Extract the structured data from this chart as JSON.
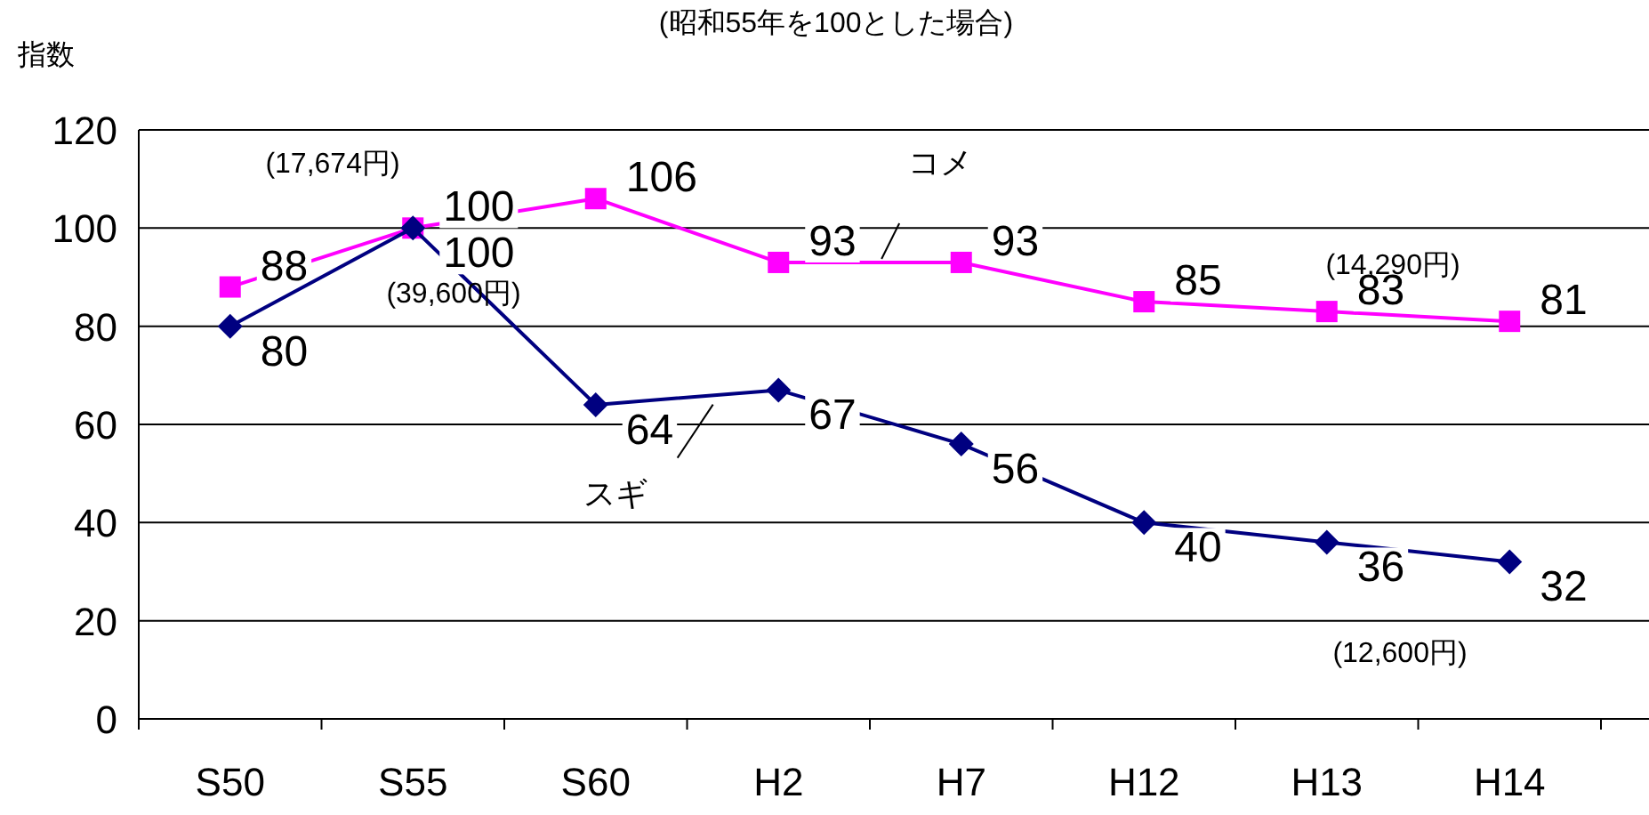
{
  "chart_data": {
    "type": "line",
    "subtitle": "(昭和55年を100とした場合)",
    "ylabel": "指数",
    "categories": [
      "S50",
      "S55",
      "S60",
      "H2",
      "H7",
      "H12",
      "H13",
      "H14"
    ],
    "series": [
      {
        "name": "コメ",
        "color": "#ff00ff",
        "marker": "square",
        "values": [
          88,
          100,
          106,
          93,
          93,
          85,
          83,
          81
        ]
      },
      {
        "name": "スギ",
        "color": "#000080",
        "marker": "diamond",
        "values": [
          80,
          100,
          64,
          67,
          56,
          40,
          36,
          32
        ]
      }
    ],
    "ylim": [
      0,
      120
    ],
    "yticks": [
      0,
      20,
      40,
      60,
      80,
      100,
      120
    ],
    "grid": "y",
    "legend": false,
    "data_labels": true,
    "line_style": "solid",
    "annotations": [
      "(17,674円)",
      "(39,600円)",
      "(14,290円)",
      "(12,600円)"
    ]
  }
}
